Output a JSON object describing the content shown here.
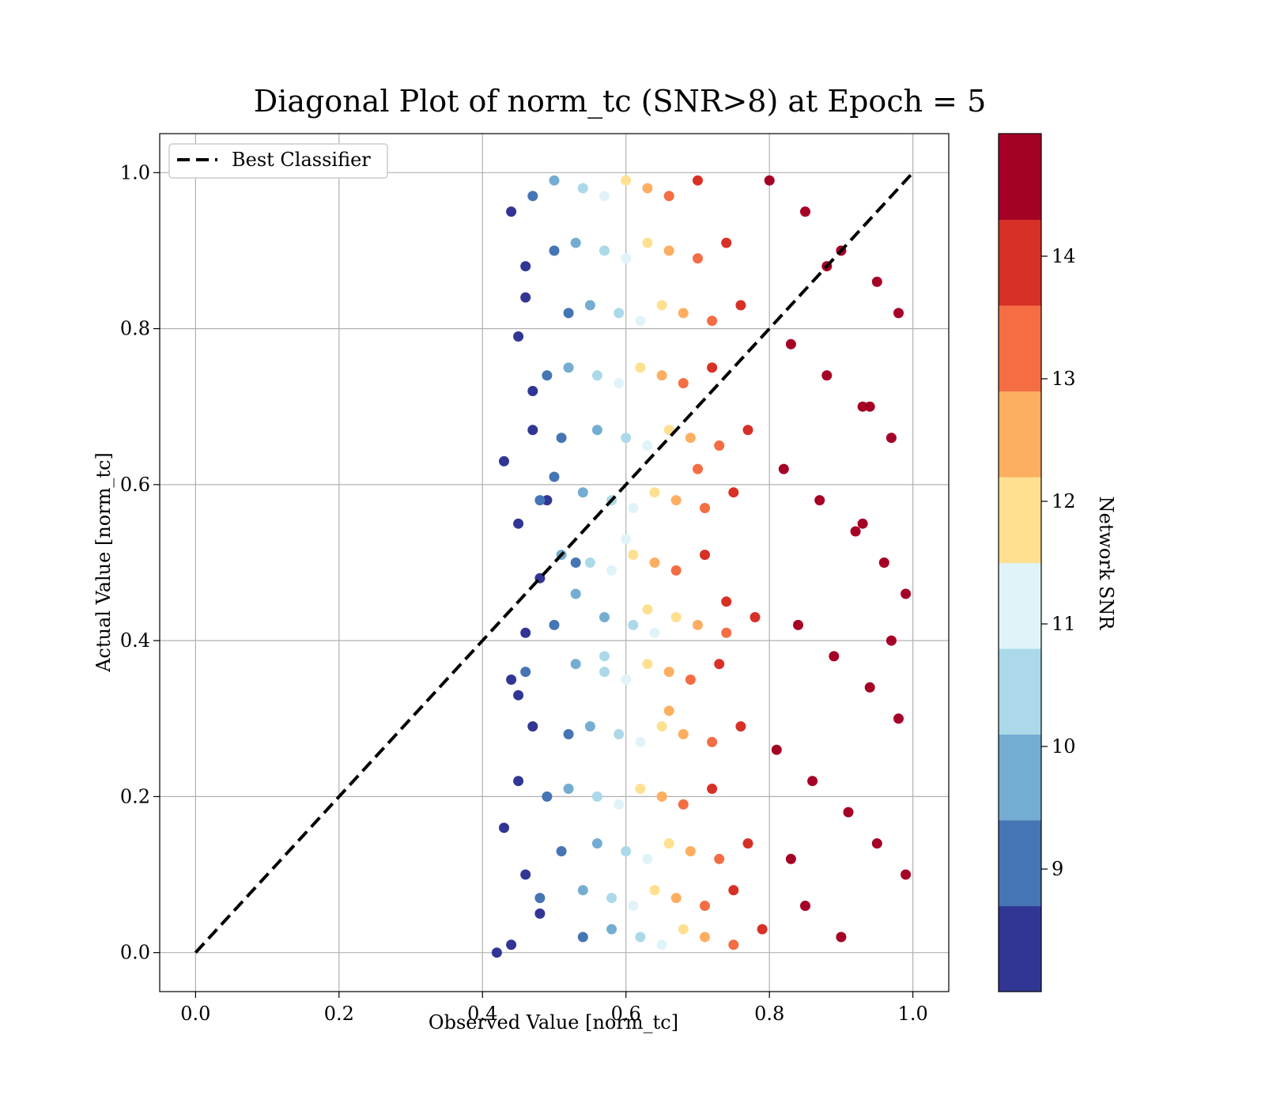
{
  "chart_data": {
    "type": "scatter",
    "title": "Diagonal Plot of norm_tc (SNR>8) at Epoch = 5",
    "xlabel": "Observed Value [norm_tc]",
    "ylabel": "Actual Value [norm_tc]",
    "xlim": [
      -0.05,
      1.05
    ],
    "ylim": [
      -0.05,
      1.05
    ],
    "xticks": [
      0.0,
      0.2,
      0.4,
      0.6,
      0.8,
      1.0
    ],
    "yticks": [
      0.0,
      0.2,
      0.4,
      0.6,
      0.8,
      1.0
    ],
    "xtick_labels": [
      "0.0",
      "0.2",
      "0.4",
      "0.6",
      "0.8",
      "1.0"
    ],
    "ytick_labels": [
      "0.0",
      "0.2",
      "0.4",
      "0.6",
      "0.8",
      "1.0"
    ],
    "grid": true,
    "legend": {
      "placement": "upper-left",
      "entries": [
        {
          "label": "Best Classifier",
          "style": "dashed",
          "color": "#000000"
        }
      ]
    },
    "reference_line": {
      "name": "Best Classifier",
      "x": [
        0.0,
        1.0
      ],
      "y": [
        0.0,
        1.0
      ],
      "style": "dashed",
      "color": "#000000"
    },
    "scatter_summary": {
      "observed_range": [
        0.42,
        1.0
      ],
      "actual_range": [
        0.0,
        1.0
      ],
      "description_of_trend": "higher network SNR points cluster at larger observed values"
    },
    "series": [
      {
        "snr": 8.3,
        "x": [
          0.44,
          0.46,
          0.45,
          0.47,
          0.43,
          0.45,
          0.48,
          0.46,
          0.44,
          0.47,
          0.45,
          0.43,
          0.46,
          0.48,
          0.44,
          0.47,
          0.45,
          0.42,
          0.46,
          0.49
        ],
        "y": [
          0.95,
          0.88,
          0.79,
          0.72,
          0.63,
          0.55,
          0.48,
          0.41,
          0.35,
          0.29,
          0.22,
          0.16,
          0.1,
          0.05,
          0.01,
          0.67,
          0.33,
          0.0,
          0.84,
          0.58
        ]
      },
      {
        "snr": 9.0,
        "x": [
          0.47,
          0.5,
          0.52,
          0.49,
          0.51,
          0.48,
          0.53,
          0.5,
          0.46,
          0.52,
          0.49,
          0.51,
          0.48,
          0.54,
          0.5
        ],
        "y": [
          0.97,
          0.9,
          0.82,
          0.74,
          0.66,
          0.58,
          0.5,
          0.42,
          0.36,
          0.28,
          0.2,
          0.13,
          0.07,
          0.02,
          0.61
        ]
      },
      {
        "snr": 9.8,
        "x": [
          0.5,
          0.53,
          0.55,
          0.52,
          0.56,
          0.54,
          0.51,
          0.57,
          0.53,
          0.55,
          0.52,
          0.56,
          0.54,
          0.58,
          0.53
        ],
        "y": [
          0.99,
          0.91,
          0.83,
          0.75,
          0.67,
          0.59,
          0.51,
          0.43,
          0.37,
          0.29,
          0.21,
          0.14,
          0.08,
          0.03,
          0.46
        ]
      },
      {
        "snr": 10.5,
        "x": [
          0.54,
          0.57,
          0.59,
          0.56,
          0.6,
          0.58,
          0.55,
          0.61,
          0.57,
          0.59,
          0.56,
          0.6,
          0.58,
          0.62,
          0.57
        ],
        "y": [
          0.98,
          0.9,
          0.82,
          0.74,
          0.66,
          0.58,
          0.5,
          0.42,
          0.36,
          0.28,
          0.2,
          0.13,
          0.07,
          0.02,
          0.38
        ]
      },
      {
        "snr": 11.2,
        "x": [
          0.57,
          0.6,
          0.62,
          0.59,
          0.63,
          0.61,
          0.58,
          0.64,
          0.6,
          0.62,
          0.59,
          0.63,
          0.61,
          0.65,
          0.6
        ],
        "y": [
          0.97,
          0.89,
          0.81,
          0.73,
          0.65,
          0.57,
          0.49,
          0.41,
          0.35,
          0.27,
          0.19,
          0.12,
          0.06,
          0.01,
          0.53
        ]
      },
      {
        "snr": 11.9,
        "x": [
          0.6,
          0.63,
          0.65,
          0.62,
          0.66,
          0.64,
          0.61,
          0.67,
          0.63,
          0.65,
          0.62,
          0.66,
          0.64,
          0.68,
          0.63
        ],
        "y": [
          0.99,
          0.91,
          0.83,
          0.75,
          0.67,
          0.59,
          0.51,
          0.43,
          0.37,
          0.29,
          0.21,
          0.14,
          0.08,
          0.03,
          0.44
        ]
      },
      {
        "snr": 12.6,
        "x": [
          0.63,
          0.66,
          0.68,
          0.65,
          0.69,
          0.67,
          0.64,
          0.7,
          0.66,
          0.68,
          0.65,
          0.69,
          0.67,
          0.71,
          0.66
        ],
        "y": [
          0.98,
          0.9,
          0.82,
          0.74,
          0.66,
          0.58,
          0.5,
          0.42,
          0.36,
          0.28,
          0.2,
          0.13,
          0.07,
          0.02,
          0.31
        ]
      },
      {
        "snr": 13.3,
        "x": [
          0.66,
          0.7,
          0.72,
          0.68,
          0.73,
          0.71,
          0.67,
          0.74,
          0.69,
          0.72,
          0.68,
          0.73,
          0.71,
          0.75,
          0.7
        ],
        "y": [
          0.97,
          0.89,
          0.81,
          0.73,
          0.65,
          0.57,
          0.49,
          0.41,
          0.35,
          0.27,
          0.19,
          0.12,
          0.06,
          0.01,
          0.62
        ]
      },
      {
        "snr": 14.0,
        "x": [
          0.7,
          0.74,
          0.76,
          0.72,
          0.77,
          0.75,
          0.71,
          0.78,
          0.73,
          0.76,
          0.72,
          0.77,
          0.75,
          0.79,
          0.74
        ],
        "y": [
          0.99,
          0.91,
          0.83,
          0.75,
          0.67,
          0.59,
          0.51,
          0.43,
          0.37,
          0.29,
          0.21,
          0.14,
          0.08,
          0.03,
          0.45
        ]
      },
      {
        "snr": 14.7,
        "x": [
          0.8,
          0.85,
          0.9,
          0.95,
          0.98,
          0.83,
          0.88,
          0.93,
          0.97,
          0.82,
          0.87,
          0.92,
          0.96,
          0.99,
          0.84,
          0.89,
          0.94,
          0.98,
          0.81,
          0.86,
          0.91,
          0.95,
          0.99,
          0.85,
          0.9,
          0.94,
          0.97,
          0.83,
          0.88,
          0.93
        ],
        "y": [
          0.99,
          0.95,
          0.9,
          0.86,
          0.82,
          0.78,
          0.74,
          0.7,
          0.66,
          0.62,
          0.58,
          0.54,
          0.5,
          0.46,
          0.42,
          0.38,
          0.34,
          0.3,
          0.26,
          0.22,
          0.18,
          0.14,
          0.1,
          0.06,
          0.02,
          0.7,
          0.4,
          0.12,
          0.88,
          0.55
        ]
      }
    ],
    "colorbar": {
      "label": "Network SNR",
      "range": [
        8.0,
        15.0
      ],
      "ticks": [
        9,
        10,
        11,
        12,
        13,
        14
      ],
      "tick_labels": [
        "9",
        "10",
        "11",
        "12",
        "13",
        "14"
      ],
      "colors": [
        "#313695",
        "#4575b4",
        "#74add1",
        "#abd9e9",
        "#e0f3f8",
        "#fee090",
        "#fdae61",
        "#f46d43",
        "#d73027",
        "#a50026"
      ]
    }
  }
}
